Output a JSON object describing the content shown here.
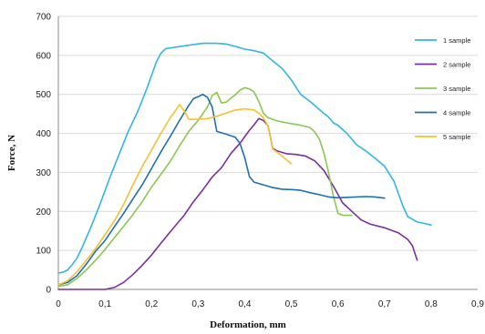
{
  "chart_data": {
    "type": "line",
    "title": "",
    "xlabel": "Deformation, mm",
    "ylabel": "Force, N",
    "xlim": [
      0,
      0.9
    ],
    "ylim": [
      0,
      700
    ],
    "x_ticks": [
      0,
      0.1,
      0.2,
      0.3,
      0.4,
      0.5,
      0.6,
      0.7,
      0.8,
      0.9
    ],
    "x_tick_labels": [
      "0",
      "0,1",
      "0,2",
      "0,3",
      "0,4",
      "0,5",
      "0,6",
      "0,7",
      "0,8",
      "0,9"
    ],
    "y_ticks": [
      0,
      100,
      200,
      300,
      400,
      500,
      600,
      700
    ],
    "y_tick_labels": [
      "0",
      "100",
      "200",
      "300",
      "400",
      "500",
      "600",
      "700"
    ],
    "grid": true,
    "legend_position": "right",
    "series": [
      {
        "name": "1 sample",
        "color": "#33b5e5",
        "points": [
          [
            0,
            42
          ],
          [
            0.01,
            44
          ],
          [
            0.02,
            50
          ],
          [
            0.03,
            64
          ],
          [
            0.04,
            80
          ],
          [
            0.05,
            105
          ],
          [
            0.07,
            160
          ],
          [
            0.09,
            220
          ],
          [
            0.11,
            285
          ],
          [
            0.13,
            345
          ],
          [
            0.15,
            405
          ],
          [
            0.17,
            455
          ],
          [
            0.19,
            515
          ],
          [
            0.21,
            582
          ],
          [
            0.22,
            605
          ],
          [
            0.23,
            617
          ],
          [
            0.25,
            621
          ],
          [
            0.28,
            626
          ],
          [
            0.31,
            631
          ],
          [
            0.34,
            631
          ],
          [
            0.36,
            629
          ],
          [
            0.38,
            623
          ],
          [
            0.4,
            616
          ],
          [
            0.42,
            612
          ],
          [
            0.44,
            606
          ],
          [
            0.46,
            586
          ],
          [
            0.48,
            567
          ],
          [
            0.5,
            537
          ],
          [
            0.52,
            500
          ],
          [
            0.54,
            482
          ],
          [
            0.56,
            461
          ],
          [
            0.58,
            442
          ],
          [
            0.59,
            427
          ],
          [
            0.6,
            421
          ],
          [
            0.62,
            399
          ],
          [
            0.64,
            371
          ],
          [
            0.66,
            355
          ],
          [
            0.68,
            336
          ],
          [
            0.7,
            316
          ],
          [
            0.72,
            278
          ],
          [
            0.73,
            245
          ],
          [
            0.74,
            212
          ],
          [
            0.75,
            187
          ],
          [
            0.76,
            180
          ],
          [
            0.77,
            173
          ],
          [
            0.79,
            168
          ],
          [
            0.8,
            165
          ]
        ]
      },
      {
        "name": "2 sample",
        "color": "#7b2fa0",
        "points": [
          [
            0,
            0
          ],
          [
            0.05,
            0
          ],
          [
            0.08,
            0
          ],
          [
            0.1,
            0
          ],
          [
            0.12,
            5
          ],
          [
            0.14,
            18
          ],
          [
            0.16,
            38
          ],
          [
            0.18,
            62
          ],
          [
            0.2,
            88
          ],
          [
            0.22,
            118
          ],
          [
            0.25,
            162
          ],
          [
            0.27,
            190
          ],
          [
            0.29,
            225
          ],
          [
            0.31,
            255
          ],
          [
            0.33,
            288
          ],
          [
            0.35,
            312
          ],
          [
            0.37,
            348
          ],
          [
            0.39,
            375
          ],
          [
            0.41,
            408
          ],
          [
            0.42,
            422
          ],
          [
            0.43,
            438
          ],
          [
            0.44,
            433
          ],
          [
            0.45,
            420
          ],
          [
            0.46,
            362
          ],
          [
            0.47,
            355
          ],
          [
            0.49,
            348
          ],
          [
            0.51,
            346
          ],
          [
            0.53,
            342
          ],
          [
            0.55,
            330
          ],
          [
            0.57,
            305
          ],
          [
            0.59,
            265
          ],
          [
            0.61,
            222
          ],
          [
            0.63,
            200
          ],
          [
            0.65,
            178
          ],
          [
            0.67,
            167
          ],
          [
            0.7,
            158
          ],
          [
            0.73,
            145
          ],
          [
            0.75,
            128
          ],
          [
            0.76,
            112
          ],
          [
            0.77,
            75
          ]
        ]
      },
      {
        "name": "3 sample",
        "color": "#8ac850",
        "points": [
          [
            0,
            8
          ],
          [
            0.02,
            12
          ],
          [
            0.04,
            28
          ],
          [
            0.06,
            50
          ],
          [
            0.08,
            75
          ],
          [
            0.1,
            102
          ],
          [
            0.12,
            132
          ],
          [
            0.14,
            162
          ],
          [
            0.16,
            192
          ],
          [
            0.18,
            225
          ],
          [
            0.2,
            262
          ],
          [
            0.22,
            295
          ],
          [
            0.24,
            328
          ],
          [
            0.26,
            368
          ],
          [
            0.28,
            405
          ],
          [
            0.3,
            433
          ],
          [
            0.32,
            468
          ],
          [
            0.33,
            497
          ],
          [
            0.34,
            505
          ],
          [
            0.35,
            478
          ],
          [
            0.36,
            480
          ],
          [
            0.37,
            490
          ],
          [
            0.38,
            499
          ],
          [
            0.39,
            511
          ],
          [
            0.4,
            517
          ],
          [
            0.41,
            514
          ],
          [
            0.42,
            506
          ],
          [
            0.43,
            482
          ],
          [
            0.44,
            452
          ],
          [
            0.45,
            440
          ],
          [
            0.47,
            432
          ],
          [
            0.49,
            427
          ],
          [
            0.52,
            421
          ],
          [
            0.54,
            415
          ],
          [
            0.55,
            404
          ],
          [
            0.56,
            386
          ],
          [
            0.57,
            350
          ],
          [
            0.58,
            300
          ],
          [
            0.59,
            240
          ],
          [
            0.6,
            195
          ],
          [
            0.61,
            190
          ],
          [
            0.63,
            190
          ]
        ]
      },
      {
        "name": "4 sample",
        "color": "#1f6fb5",
        "points": [
          [
            0,
            12
          ],
          [
            0.02,
            18
          ],
          [
            0.04,
            35
          ],
          [
            0.06,
            65
          ],
          [
            0.08,
            98
          ],
          [
            0.1,
            125
          ],
          [
            0.12,
            160
          ],
          [
            0.14,
            195
          ],
          [
            0.16,
            232
          ],
          [
            0.18,
            268
          ],
          [
            0.2,
            310
          ],
          [
            0.22,
            352
          ],
          [
            0.24,
            392
          ],
          [
            0.26,
            433
          ],
          [
            0.28,
            472
          ],
          [
            0.29,
            489
          ],
          [
            0.3,
            494
          ],
          [
            0.31,
            500
          ],
          [
            0.32,
            492
          ],
          [
            0.33,
            468
          ],
          [
            0.34,
            405
          ],
          [
            0.36,
            398
          ],
          [
            0.38,
            390
          ],
          [
            0.39,
            374
          ],
          [
            0.4,
            338
          ],
          [
            0.41,
            289
          ],
          [
            0.42,
            275
          ],
          [
            0.44,
            268
          ],
          [
            0.46,
            261
          ],
          [
            0.48,
            257
          ],
          [
            0.5,
            256
          ],
          [
            0.52,
            254
          ],
          [
            0.54,
            248
          ],
          [
            0.56,
            243
          ],
          [
            0.58,
            237
          ],
          [
            0.6,
            235
          ],
          [
            0.64,
            237
          ],
          [
            0.66,
            238
          ],
          [
            0.68,
            237
          ],
          [
            0.7,
            234
          ]
        ]
      },
      {
        "name": "5 sample",
        "color": "#f5c12e",
        "points": [
          [
            0,
            12
          ],
          [
            0.02,
            22
          ],
          [
            0.04,
            45
          ],
          [
            0.06,
            75
          ],
          [
            0.08,
            105
          ],
          [
            0.1,
            140
          ],
          [
            0.12,
            175
          ],
          [
            0.14,
            218
          ],
          [
            0.16,
            268
          ],
          [
            0.18,
            315
          ],
          [
            0.2,
            357
          ],
          [
            0.22,
            400
          ],
          [
            0.24,
            440
          ],
          [
            0.25,
            456
          ],
          [
            0.26,
            474
          ],
          [
            0.27,
            458
          ],
          [
            0.28,
            436
          ],
          [
            0.3,
            436
          ],
          [
            0.32,
            438
          ],
          [
            0.34,
            444
          ],
          [
            0.36,
            452
          ],
          [
            0.38,
            460
          ],
          [
            0.4,
            463
          ],
          [
            0.42,
            460
          ],
          [
            0.43,
            452
          ],
          [
            0.44,
            440
          ],
          [
            0.45,
            419
          ],
          [
            0.46,
            360
          ],
          [
            0.48,
            342
          ],
          [
            0.5,
            322
          ]
        ]
      }
    ]
  }
}
